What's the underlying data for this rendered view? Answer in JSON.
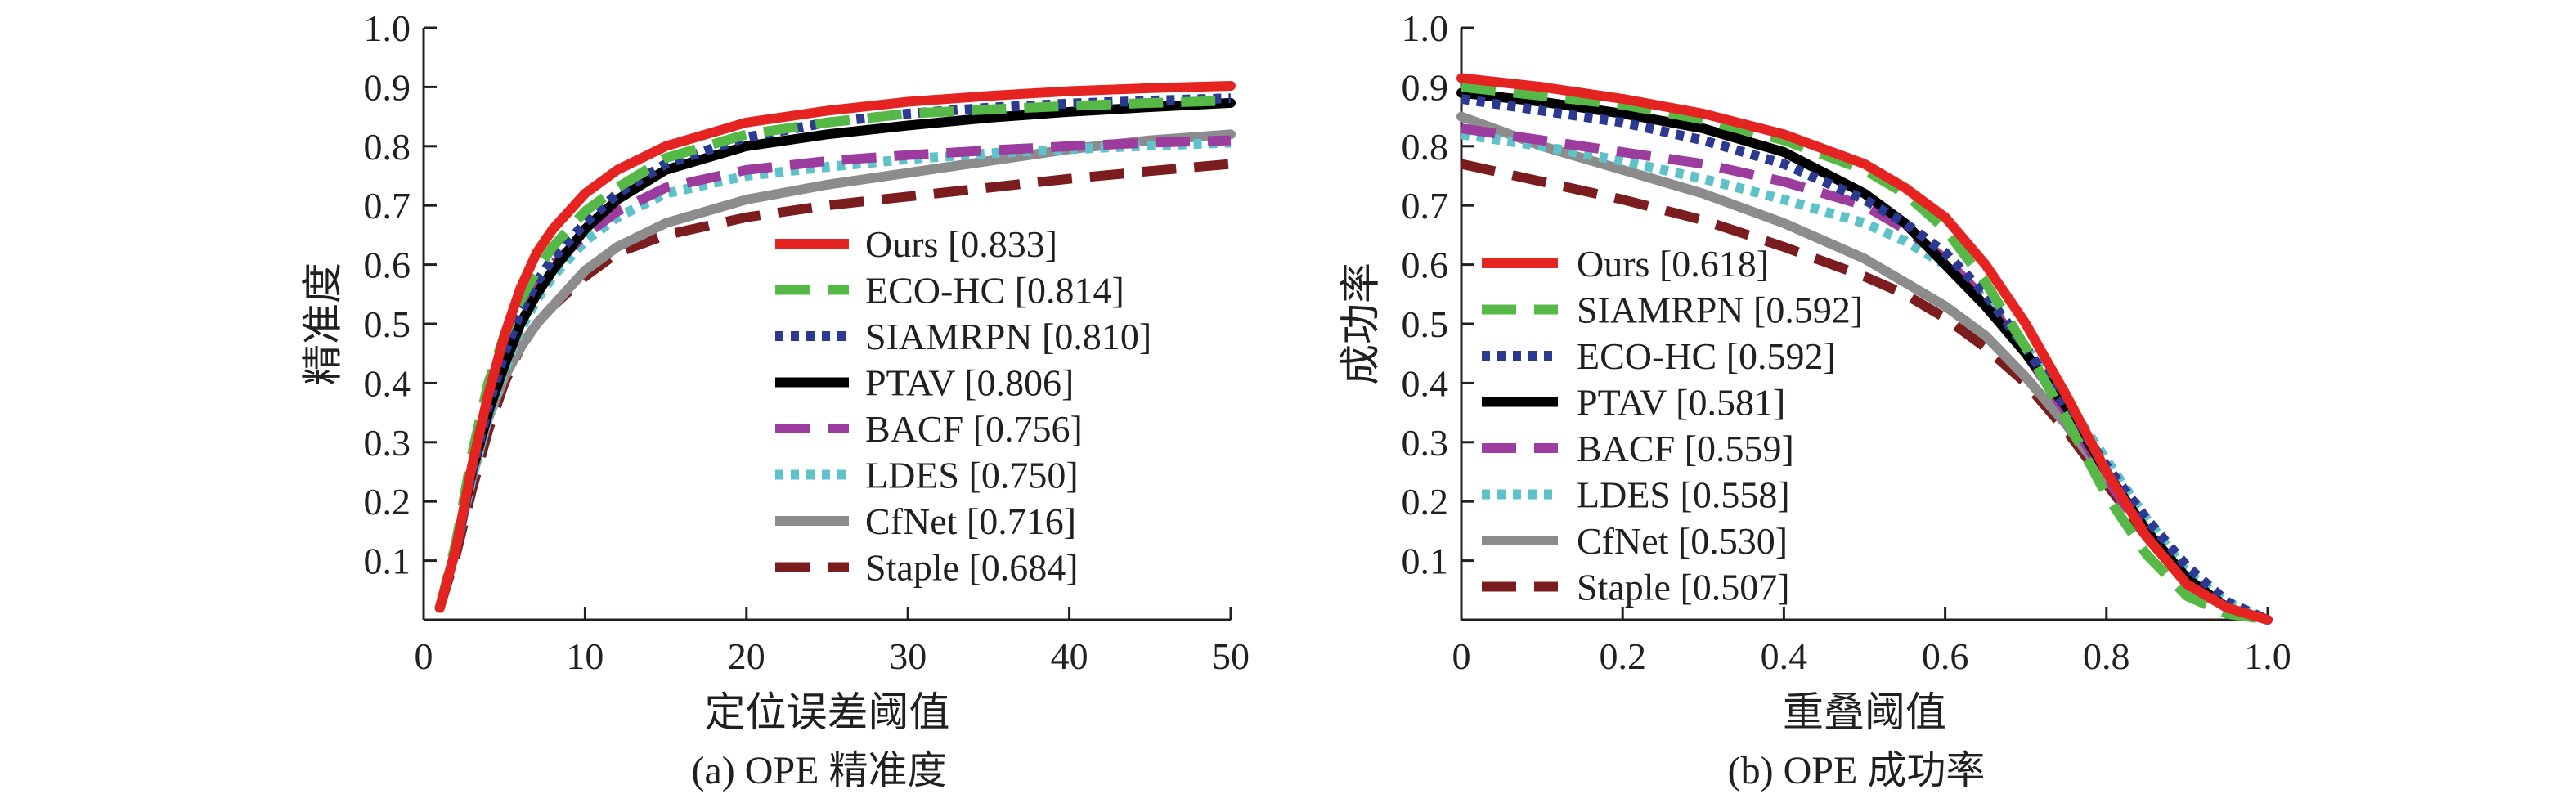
{
  "chart_data": [
    {
      "type": "line",
      "title": "",
      "caption": "(a) OPE 精准度",
      "xlabel": "定位误差阈值",
      "ylabel": "精准度",
      "xlim": [
        0,
        50
      ],
      "ylim": [
        0,
        1
      ],
      "x_ticks": [
        {
          "value": 0,
          "label": "0"
        },
        {
          "value": 10,
          "label": "10"
        },
        {
          "value": 20,
          "label": "20"
        },
        {
          "value": 30,
          "label": "30"
        },
        {
          "value": 40,
          "label": "40"
        },
        {
          "value": 50,
          "label": "50"
        }
      ],
      "y_ticks": [
        {
          "value": 0.1,
          "label": "0.1"
        },
        {
          "value": 0.2,
          "label": "0.2"
        },
        {
          "value": 0.3,
          "label": "0.3"
        },
        {
          "value": 0.4,
          "label": "0.4"
        },
        {
          "value": 0.5,
          "label": "0.5"
        },
        {
          "value": 0.6,
          "label": "0.6"
        },
        {
          "value": 0.7,
          "label": "0.7"
        },
        {
          "value": 0.8,
          "label": "0.8"
        },
        {
          "value": 0.9,
          "label": "0.9"
        },
        {
          "value": 1.0,
          "label": "1.0"
        }
      ],
      "legend_position": "lower-right",
      "series": [
        {
          "name": "Ours [0.833]",
          "color": "#e52421",
          "style": "solid",
          "x": [
            1,
            2,
            3,
            4,
            5,
            6,
            7,
            8,
            10,
            12,
            15,
            20,
            25,
            30,
            35,
            40,
            45,
            50
          ],
          "y": [
            0.02,
            0.12,
            0.26,
            0.38,
            0.48,
            0.56,
            0.62,
            0.66,
            0.72,
            0.76,
            0.8,
            0.84,
            0.86,
            0.875,
            0.885,
            0.893,
            0.898,
            0.902
          ]
        },
        {
          "name": "ECO-HC [0.814]",
          "color": "#56b847",
          "style": "dash",
          "x": [
            1,
            2,
            3,
            4,
            5,
            6,
            7,
            8,
            10,
            12,
            15,
            20,
            25,
            30,
            35,
            40,
            45,
            50
          ],
          "y": [
            0.02,
            0.13,
            0.28,
            0.4,
            0.48,
            0.54,
            0.59,
            0.63,
            0.69,
            0.73,
            0.78,
            0.82,
            0.84,
            0.855,
            0.862,
            0.868,
            0.873,
            0.877
          ]
        },
        {
          "name": "SIAMRPN [0.810]",
          "color": "#2b3990",
          "style": "dot",
          "x": [
            1,
            2,
            3,
            4,
            5,
            6,
            7,
            8,
            10,
            12,
            15,
            20,
            25,
            30,
            35,
            40,
            45,
            50
          ],
          "y": [
            0.02,
            0.12,
            0.25,
            0.36,
            0.45,
            0.52,
            0.57,
            0.61,
            0.67,
            0.72,
            0.77,
            0.815,
            0.84,
            0.855,
            0.865,
            0.872,
            0.877,
            0.881
          ]
        },
        {
          "name": "PTAV [0.806]",
          "color": "#000000",
          "style": "solid",
          "x": [
            1,
            2,
            3,
            4,
            5,
            6,
            7,
            8,
            10,
            12,
            15,
            20,
            25,
            30,
            35,
            40,
            45,
            50
          ],
          "y": [
            0.02,
            0.12,
            0.25,
            0.35,
            0.43,
            0.5,
            0.55,
            0.59,
            0.66,
            0.71,
            0.76,
            0.8,
            0.82,
            0.835,
            0.848,
            0.858,
            0.866,
            0.873
          ]
        },
        {
          "name": "BACF [0.756]",
          "color": "#9b3c9e",
          "style": "dash",
          "x": [
            1,
            2,
            3,
            4,
            5,
            6,
            7,
            8,
            10,
            12,
            15,
            20,
            25,
            30,
            35,
            40,
            45,
            50
          ],
          "y": [
            0.02,
            0.12,
            0.25,
            0.35,
            0.44,
            0.51,
            0.56,
            0.6,
            0.65,
            0.69,
            0.73,
            0.76,
            0.775,
            0.785,
            0.793,
            0.8,
            0.806,
            0.81
          ]
        },
        {
          "name": "LDES [0.750]",
          "color": "#5ec3c9",
          "style": "dot",
          "x": [
            1,
            2,
            3,
            4,
            5,
            6,
            7,
            8,
            10,
            12,
            15,
            20,
            25,
            30,
            35,
            40,
            45,
            50
          ],
          "y": [
            0.02,
            0.12,
            0.24,
            0.34,
            0.42,
            0.49,
            0.54,
            0.58,
            0.64,
            0.68,
            0.72,
            0.75,
            0.765,
            0.778,
            0.788,
            0.795,
            0.801,
            0.806
          ]
        },
        {
          "name": "CfNet [0.716]",
          "color": "#8c8c8c",
          "style": "solid",
          "x": [
            1,
            2,
            3,
            4,
            5,
            6,
            7,
            8,
            10,
            12,
            15,
            20,
            25,
            30,
            35,
            40,
            45,
            50
          ],
          "y": [
            0.02,
            0.12,
            0.24,
            0.34,
            0.41,
            0.46,
            0.5,
            0.53,
            0.59,
            0.63,
            0.67,
            0.71,
            0.735,
            0.755,
            0.775,
            0.795,
            0.81,
            0.82
          ]
        },
        {
          "name": "Staple [0.684]",
          "color": "#7b1c1e",
          "style": "dash",
          "x": [
            1,
            2,
            3,
            4,
            5,
            6,
            7,
            8,
            10,
            12,
            15,
            20,
            25,
            30,
            35,
            40,
            45,
            50
          ],
          "y": [
            0.02,
            0.11,
            0.22,
            0.32,
            0.4,
            0.46,
            0.5,
            0.53,
            0.58,
            0.62,
            0.65,
            0.68,
            0.7,
            0.715,
            0.73,
            0.745,
            0.758,
            0.77
          ]
        }
      ]
    },
    {
      "type": "line",
      "title": "",
      "caption": "(b) OPE 成功率",
      "xlabel": "重叠阈值",
      "ylabel": "成功率",
      "xlim": [
        0,
        1
      ],
      "ylim": [
        0,
        1
      ],
      "x_ticks": [
        {
          "value": 0,
          "label": "0"
        },
        {
          "value": 0.2,
          "label": "0.2"
        },
        {
          "value": 0.4,
          "label": "0.4"
        },
        {
          "value": 0.6,
          "label": "0.6"
        },
        {
          "value": 0.8,
          "label": "0.8"
        },
        {
          "value": 1.0,
          "label": "1.0"
        }
      ],
      "y_ticks": [
        {
          "value": 0.1,
          "label": "0.1"
        },
        {
          "value": 0.2,
          "label": "0.2"
        },
        {
          "value": 0.3,
          "label": "0.3"
        },
        {
          "value": 0.4,
          "label": "0.4"
        },
        {
          "value": 0.5,
          "label": "0.5"
        },
        {
          "value": 0.6,
          "label": "0.6"
        },
        {
          "value": 0.7,
          "label": "0.7"
        },
        {
          "value": 0.8,
          "label": "0.8"
        },
        {
          "value": 0.9,
          "label": "0.9"
        },
        {
          "value": 1.0,
          "label": "1.0"
        }
      ],
      "legend_position": "lower-left",
      "series": [
        {
          "name": "Ours [0.618]",
          "color": "#e52421",
          "style": "solid",
          "x": [
            0,
            0.1,
            0.2,
            0.3,
            0.4,
            0.5,
            0.55,
            0.6,
            0.65,
            0.7,
            0.75,
            0.8,
            0.85,
            0.9,
            0.95,
            1.0
          ],
          "y": [
            0.915,
            0.9,
            0.88,
            0.855,
            0.82,
            0.77,
            0.73,
            0.68,
            0.6,
            0.5,
            0.38,
            0.25,
            0.14,
            0.06,
            0.02,
            0.0
          ]
        },
        {
          "name": "SIAMRPN [0.592]",
          "color": "#56b847",
          "style": "dash",
          "x": [
            0,
            0.1,
            0.2,
            0.3,
            0.4,
            0.5,
            0.55,
            0.6,
            0.65,
            0.7,
            0.75,
            0.8,
            0.85,
            0.9,
            0.95,
            1.0
          ],
          "y": [
            0.9,
            0.885,
            0.87,
            0.845,
            0.81,
            0.76,
            0.72,
            0.66,
            0.57,
            0.46,
            0.34,
            0.21,
            0.11,
            0.04,
            0.01,
            0.0
          ]
        },
        {
          "name": "ECO-HC [0.592]",
          "color": "#2b3990",
          "style": "dot",
          "x": [
            0,
            0.1,
            0.2,
            0.3,
            0.4,
            0.5,
            0.55,
            0.6,
            0.65,
            0.7,
            0.75,
            0.8,
            0.85,
            0.9,
            0.95,
            1.0
          ],
          "y": [
            0.88,
            0.86,
            0.84,
            0.81,
            0.77,
            0.71,
            0.67,
            0.62,
            0.55,
            0.46,
            0.36,
            0.26,
            0.17,
            0.09,
            0.03,
            0.0
          ]
        },
        {
          "name": "PTAV [0.581]",
          "color": "#000000",
          "style": "solid",
          "x": [
            0,
            0.1,
            0.2,
            0.3,
            0.4,
            0.5,
            0.55,
            0.6,
            0.65,
            0.7,
            0.75,
            0.8,
            0.85,
            0.9,
            0.95,
            1.0
          ],
          "y": [
            0.89,
            0.875,
            0.855,
            0.83,
            0.79,
            0.72,
            0.67,
            0.6,
            0.53,
            0.45,
            0.36,
            0.25,
            0.15,
            0.07,
            0.02,
            0.0
          ]
        },
        {
          "name": "BACF [0.559]",
          "color": "#9b3c9e",
          "style": "dash",
          "x": [
            0,
            0.1,
            0.2,
            0.3,
            0.4,
            0.5,
            0.55,
            0.6,
            0.65,
            0.7,
            0.75,
            0.8,
            0.85,
            0.9,
            0.95,
            1.0
          ],
          "y": [
            0.83,
            0.81,
            0.79,
            0.77,
            0.74,
            0.7,
            0.66,
            0.61,
            0.54,
            0.45,
            0.35,
            0.24,
            0.14,
            0.06,
            0.02,
            0.0
          ]
        },
        {
          "name": "LDES [0.558]",
          "color": "#5ec3c9",
          "style": "dot",
          "x": [
            0,
            0.1,
            0.2,
            0.3,
            0.4,
            0.5,
            0.55,
            0.6,
            0.65,
            0.7,
            0.75,
            0.8,
            0.85,
            0.9,
            0.95,
            1.0
          ],
          "y": [
            0.82,
            0.8,
            0.775,
            0.745,
            0.71,
            0.67,
            0.64,
            0.6,
            0.54,
            0.46,
            0.37,
            0.27,
            0.17,
            0.08,
            0.03,
            0.0
          ]
        },
        {
          "name": "CfNet [0.530]",
          "color": "#8c8c8c",
          "style": "solid",
          "x": [
            0,
            0.1,
            0.2,
            0.3,
            0.4,
            0.5,
            0.55,
            0.6,
            0.65,
            0.7,
            0.75,
            0.8,
            0.85,
            0.9,
            0.95,
            1.0
          ],
          "y": [
            0.85,
            0.8,
            0.76,
            0.72,
            0.67,
            0.61,
            0.57,
            0.53,
            0.48,
            0.41,
            0.33,
            0.24,
            0.15,
            0.07,
            0.02,
            0.0
          ]
        },
        {
          "name": "Staple [0.507]",
          "color": "#7b1c1e",
          "style": "dash",
          "x": [
            0,
            0.1,
            0.2,
            0.3,
            0.4,
            0.5,
            0.55,
            0.6,
            0.65,
            0.7,
            0.75,
            0.8,
            0.85,
            0.9,
            0.95,
            1.0
          ],
          "y": [
            0.77,
            0.74,
            0.71,
            0.675,
            0.63,
            0.58,
            0.55,
            0.51,
            0.46,
            0.4,
            0.32,
            0.23,
            0.14,
            0.06,
            0.02,
            0.0
          ]
        }
      ]
    }
  ]
}
